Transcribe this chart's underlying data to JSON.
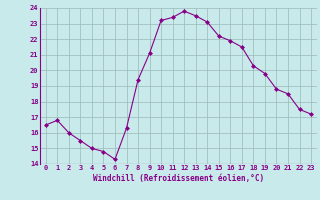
{
  "x": [
    0,
    1,
    2,
    3,
    4,
    5,
    6,
    7,
    8,
    9,
    10,
    11,
    12,
    13,
    14,
    15,
    16,
    17,
    18,
    19,
    20,
    21,
    22,
    23
  ],
  "y": [
    16.5,
    16.8,
    16.0,
    15.5,
    15.0,
    14.8,
    14.3,
    16.3,
    19.4,
    21.1,
    23.2,
    23.4,
    23.8,
    23.5,
    23.1,
    22.2,
    21.9,
    21.5,
    20.3,
    19.8,
    18.8,
    18.5,
    17.5,
    17.2
  ],
  "xlabel": "Windchill (Refroidissement éolien,°C)",
  "ylim": [
    14,
    24
  ],
  "xlim": [
    -0.5,
    23.5
  ],
  "yticks": [
    14,
    15,
    16,
    17,
    18,
    19,
    20,
    21,
    22,
    23,
    24
  ],
  "xticks": [
    0,
    1,
    2,
    3,
    4,
    5,
    6,
    7,
    8,
    9,
    10,
    11,
    12,
    13,
    14,
    15,
    16,
    17,
    18,
    19,
    20,
    21,
    22,
    23
  ],
  "line_color": "#880088",
  "marker_color": "#880088",
  "bg_color": "#c8eaea",
  "grid_color": "#9ab8b8",
  "tick_label_color": "#880088",
  "xlabel_color": "#880088"
}
